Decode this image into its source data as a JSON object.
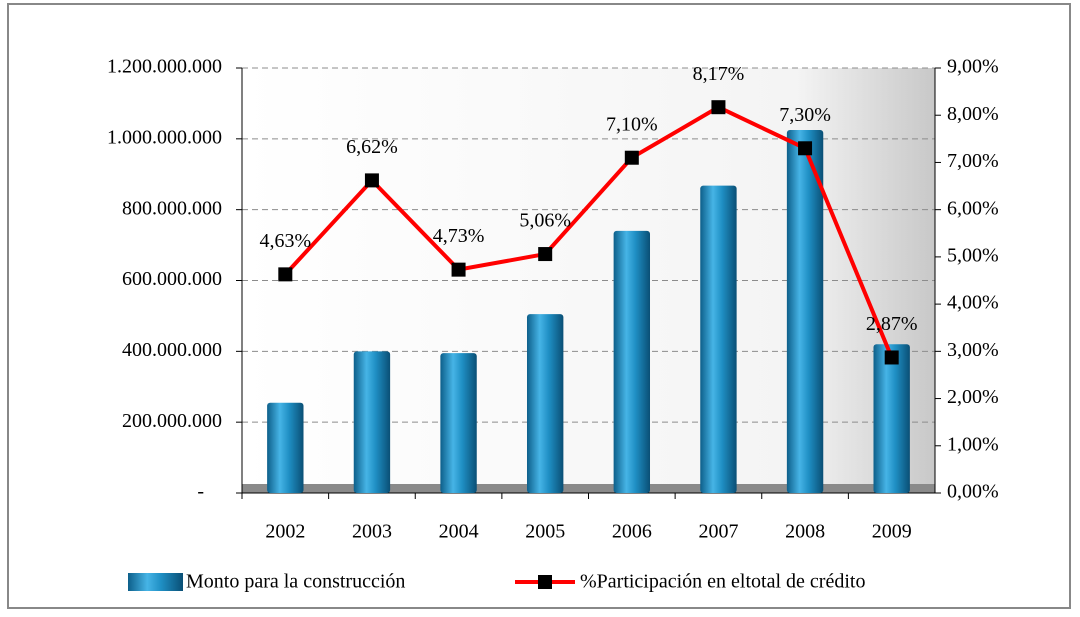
{
  "chart_data": {
    "type": "bar-line",
    "categories": [
      "2002",
      "2003",
      "2004",
      "2005",
      "2006",
      "2007",
      "2008",
      "2009"
    ],
    "series": [
      {
        "name": "Monto para la construcción",
        "type": "bar",
        "color": "#1f8fc4",
        "values": [
          255000000,
          400000000,
          395000000,
          505000000,
          740000000,
          868000000,
          1025000000,
          420000000
        ]
      },
      {
        "name": "%Participación en eltotal de crédito",
        "type": "line",
        "color": "#ff0000",
        "marker_color": "#000000",
        "axis": "y2",
        "values": [
          4.63,
          6.62,
          4.73,
          5.06,
          7.1,
          8.17,
          7.3,
          2.87
        ],
        "value_labels": [
          "4,63%",
          "6,62%",
          "4,73%",
          "5,06%",
          "7,10%",
          "8,17%",
          "7,30%",
          "2,87%"
        ]
      }
    ],
    "ylim": [
      0,
      1200000000
    ],
    "yticks": [
      {
        "value": 0,
        "label": "-"
      },
      {
        "value": 200000000,
        "label": "200.000.000"
      },
      {
        "value": 400000000,
        "label": "400.000.000"
      },
      {
        "value": 600000000,
        "label": "600.000.000"
      },
      {
        "value": 800000000,
        "label": "800.000.000"
      },
      {
        "value": 1000000000,
        "label": "1.000.000.000"
      },
      {
        "value": 1200000000,
        "label": "1.200.000.000"
      }
    ],
    "y2lim": [
      0,
      9
    ],
    "y2ticks": [
      {
        "value": 0,
        "label": "0,00%"
      },
      {
        "value": 1,
        "label": "1,00%"
      },
      {
        "value": 2,
        "label": "2,00%"
      },
      {
        "value": 3,
        "label": "3,00%"
      },
      {
        "value": 4,
        "label": "4,00%"
      },
      {
        "value": 5,
        "label": "5,00%"
      },
      {
        "value": 6,
        "label": "6,00%"
      },
      {
        "value": 7,
        "label": "7,00%"
      },
      {
        "value": 8,
        "label": "8,00%"
      },
      {
        "value": 9,
        "label": "9,00%"
      }
    ],
    "grid": true,
    "legend": "bottom"
  }
}
